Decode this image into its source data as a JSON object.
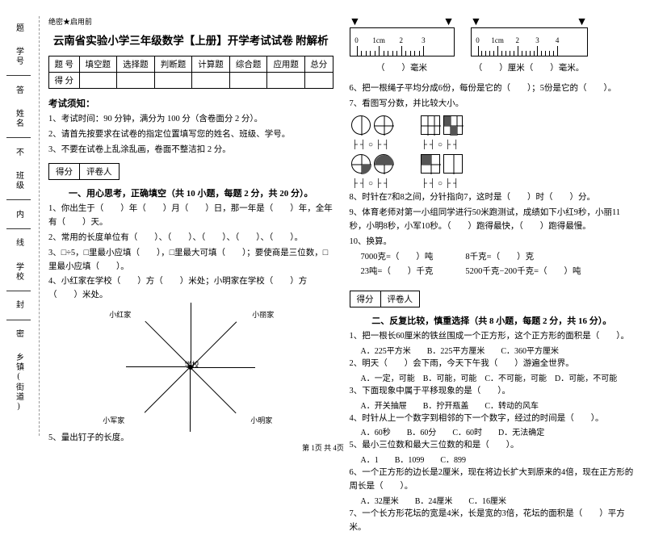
{
  "margin": {
    "l1": "学号",
    "l2": "姓名",
    "l3": "班级",
    "l4": "学校",
    "l5": "乡镇(街道)",
    "d1": "答",
    "d2": "题",
    "d3": "不",
    "d4": "内",
    "d5": "线",
    "d6": "封",
    "d7": "密"
  },
  "header_small": "绝密★启用前",
  "title": "云南省实验小学三年级数学【上册】开学考试试卷 附解析",
  "score_table": {
    "r1": [
      "题 号",
      "填空题",
      "选择题",
      "判断题",
      "计算题",
      "综合题",
      "应用题",
      "总分"
    ],
    "r2": [
      "得 分",
      "",
      "",
      "",
      "",
      "",
      "",
      ""
    ]
  },
  "notice_h": "考试须知：",
  "notice": {
    "n1": "1、考试时间：90 分钟，满分为 100 分（含卷面分 2 分）。",
    "n2": "2、请首先按要求在试卷的指定位置填写您的姓名、班级、学号。",
    "n3": "3、不要在试卷上乱涂乱画，卷面不整洁扣 2 分。"
  },
  "gradbox": {
    "a": "得分",
    "b": "评卷人"
  },
  "sec1_title": "一、用心思考，正确填空（共 10 小题，每题 2 分，共 20 分）。",
  "q": {
    "q1": "1、你出生于（　　）年（　　）月（　　）日，那一年是（　　）年，全年有（　　）天。",
    "q2": "2、常用的长度单位有（　　）、（　　）、（　　）、（　　）、（　　）。",
    "q3": "3、□÷5，□里最小应填（　　），□里最大可填（　　）；要使商是三位数，□里最小应填（　　）。",
    "q4": "4、小红家在学校（　　）方（　　）米处；小明家在学校（　　）方（　　）米处。",
    "q5": "5、量出钉子的长度。",
    "q5b_a": "（　　）毫米",
    "q5b_b": "（　　）厘米（　　）毫米。",
    "q6": "6、把一根绳子平均分成6份，每份是它的（　　）；5份是它的（　　）。",
    "q7": "7、看图写分数，并比较大小。",
    "q8": "8、时针在7和8之间，分针指向7，这时是（　　）时（　　）分。",
    "q9": "9、体育老师对第一小组同学进行50米跑测试，成绩如下小红9秒，小丽11秒，小明8秒，小军10秒。（　　）跑得最快，（　　）跑得最慢。",
    "q10": "10、换算。",
    "q10a": "7000克=（　　）吨",
    "q10b": "8千克=（　　）克",
    "q10c": "23吨=（　　）千克",
    "q10d": "5200千克−200千克=（　　）吨"
  },
  "star": {
    "l1": "学校",
    "l2": "小红家",
    "l3": "小明家",
    "l4": "小军家",
    "l5": "小丽家"
  },
  "sec2_title": "二、反复比较，慎重选择（共 8 小题，每题 2 分，共 16 分）。",
  "mc": {
    "m1": "1、把一根长60厘米的铁丝围成一个正方形，这个正方形的面积是（　　）。",
    "m1o": "A．225平方米　　B．225平方厘米　　C．360平方厘米",
    "m2": "2、明天（　　）会下雨，今天下午我（　　）游遍全世界。",
    "m2o": "A．一定，可能　B．可能，可能　C．不可能，可能　D．可能，不可能",
    "m3": "3、下面现象中属于平移现象的是（　　）。",
    "m3o": "A．开关抽屉　　B．拧开瓶盖　　C．转动的风车",
    "m4": "4、时针从上一个数字到相邻的下一个数字，经过的时间是（　　）。",
    "m4o": "A．60秒　　B．60分　　C．60时　　D．无法确定",
    "m5": "5、最小三位数和最大三位数的和是（　　）。",
    "m5o": "A．1　　B．1099　　C．899",
    "m6": "6、一个正方形的边长是2厘米，现在将边长扩大到原来的4倍，现在正方形的周长是（　　）。",
    "m6o": "A．32厘米　　B．24厘米　　C．16厘米",
    "m7": "7、一个长方形花坛的宽是4米，长是宽的3倍，花坛的面积是（　　）平方米。"
  },
  "ruler1": {
    "width": 130,
    "marks": [
      "0",
      "1cm",
      "2",
      "3"
    ]
  },
  "ruler2": {
    "width": 145,
    "marks": [
      "0",
      "1cm",
      "2",
      "3",
      "4"
    ]
  },
  "frac_syms": "├┤○├┤",
  "footer": "第 1页 共 4页",
  "colors": {
    "text": "#000000",
    "dash": "#999999",
    "bg": "#ffffff"
  }
}
